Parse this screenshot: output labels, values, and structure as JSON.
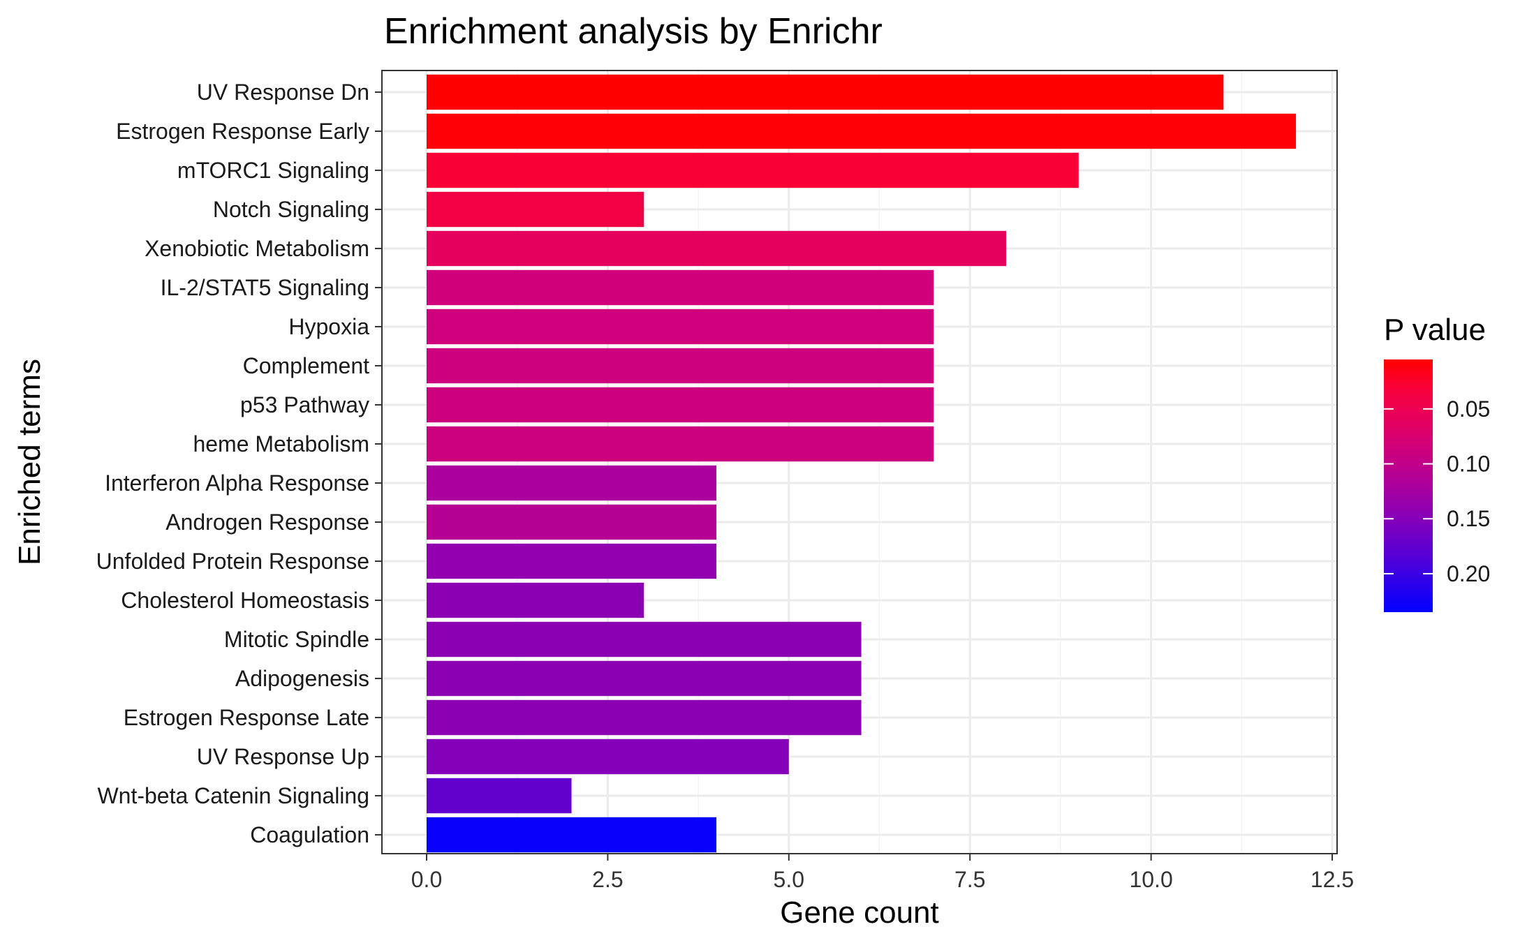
{
  "chart_data": {
    "type": "bar",
    "orientation": "horizontal",
    "title": "Enrichment analysis by Enrichr",
    "xlabel": "Gene count",
    "ylabel": "Enriched terms",
    "xlim": [
      0,
      12.5
    ],
    "xticks": [
      "0.0",
      "2.5",
      "5.0",
      "7.5",
      "10.0",
      "12.5"
    ],
    "xtick_values": [
      0,
      2.5,
      5,
      7.5,
      10,
      12.5
    ],
    "grid": true,
    "categories": [
      "UV Response Dn",
      "Estrogen Response Early",
      "mTORC1 Signaling",
      "Notch Signaling",
      "Xenobiotic Metabolism",
      "IL-2/STAT5 Signaling",
      "Hypoxia",
      "Complement",
      "p53 Pathway",
      "heme Metabolism",
      "Interferon Alpha Response",
      "Androgen Response",
      "Unfolded Protein Response",
      "Cholesterol Homeostasis",
      "Mitotic Spindle",
      "Adipogenesis",
      "Estrogen Response Late",
      "UV Response Up",
      "Wnt-beta Catenin Signaling",
      "Coagulation"
    ],
    "values": [
      11,
      12,
      9,
      3,
      8,
      7,
      7,
      7,
      7,
      7,
      4,
      4,
      4,
      3,
      6,
      6,
      6,
      5,
      2,
      4
    ],
    "pvalues": [
      0.005,
      0.006,
      0.03,
      0.04,
      0.06,
      0.085,
      0.087,
      0.088,
      0.089,
      0.09,
      0.12,
      0.11,
      0.14,
      0.145,
      0.145,
      0.145,
      0.145,
      0.15,
      0.175,
      0.23
    ],
    "legend": {
      "title": "P value",
      "placement": "right",
      "ticks": [
        "0.05",
        "0.10",
        "0.15",
        "0.20"
      ],
      "tick_values": [
        0.05,
        0.1,
        0.15,
        0.2
      ],
      "range": [
        0.005,
        0.235
      ],
      "low_color": "#ff0000",
      "high_color": "#0000ff"
    }
  }
}
